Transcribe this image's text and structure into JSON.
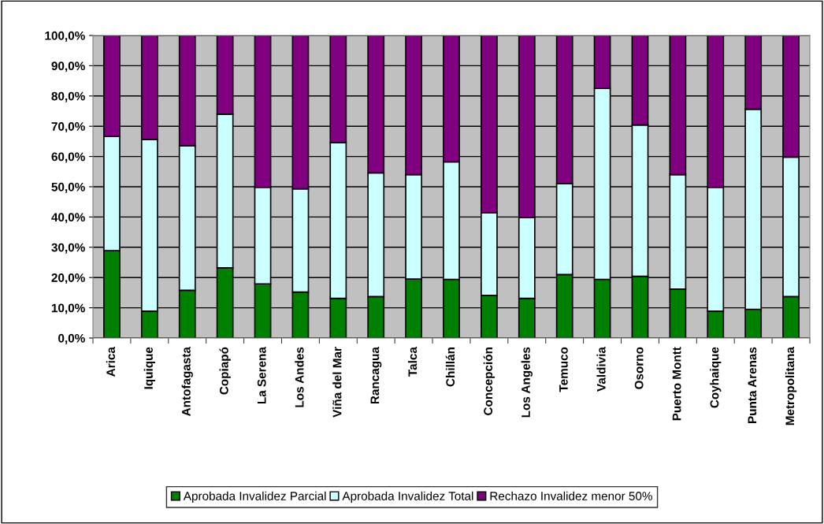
{
  "chart_data": {
    "type": "bar",
    "stacked": true,
    "categories": [
      "Arica",
      "Iquique",
      "Antofagasta",
      "Copiapó",
      "La Serena",
      "Los Andes",
      "Viña del Mar",
      "Rancagua",
      "Talca",
      "Chillán",
      "Concepción",
      "Los Angeles",
      "Temuco",
      "Valdivia",
      "Osorno",
      "Puerto Montt",
      "Coyhaique",
      "Punta Arenas",
      "Metropolitana"
    ],
    "series": [
      {
        "name": "Aprobada Invalidez Parcial",
        "color": "#008000",
        "values": [
          28.9,
          8.9,
          15.8,
          23.2,
          17.9,
          15.2,
          13.1,
          13.7,
          19.5,
          19.4,
          14.1,
          13.1,
          21.0,
          19.4,
          20.4,
          16.2,
          8.9,
          9.5,
          13.7
        ]
      },
      {
        "name": "Aprobada Invalidez Total",
        "color": "#ccffff",
        "values": [
          37.7,
          56.7,
          47.7,
          50.8,
          31.9,
          34.1,
          51.5,
          40.9,
          34.5,
          38.8,
          27.3,
          26.7,
          30.0,
          63.1,
          50.0,
          37.8,
          40.9,
          66.1,
          46.1
        ]
      },
      {
        "name": "Rechazo Invalidez menor 50%",
        "color": "#800080",
        "values": [
          33.4,
          34.4,
          36.5,
          26.0,
          50.2,
          50.7,
          35.4,
          45.4,
          46.0,
          41.8,
          58.6,
          60.2,
          49.0,
          17.5,
          29.6,
          46.0,
          50.2,
          24.4,
          40.2
        ]
      }
    ],
    "ylim": [
      0,
      100
    ],
    "yticks": [
      {
        "value": 0,
        "label": "0,0%"
      },
      {
        "value": 10,
        "label": "10,0%"
      },
      {
        "value": 20,
        "label": "20,0%"
      },
      {
        "value": 30,
        "label": "30,0%"
      },
      {
        "value": 40,
        "label": "40,0%"
      },
      {
        "value": 50,
        "label": "50,0%"
      },
      {
        "value": 60,
        "label": "60,0%"
      },
      {
        "value": 70,
        "label": "70,0%"
      },
      {
        "value": 80,
        "label": "80,0%"
      },
      {
        "value": 90,
        "label": "90,0%"
      },
      {
        "value": 100,
        "label": "100,0%"
      }
    ],
    "grid": "y",
    "legend": "bottom"
  }
}
